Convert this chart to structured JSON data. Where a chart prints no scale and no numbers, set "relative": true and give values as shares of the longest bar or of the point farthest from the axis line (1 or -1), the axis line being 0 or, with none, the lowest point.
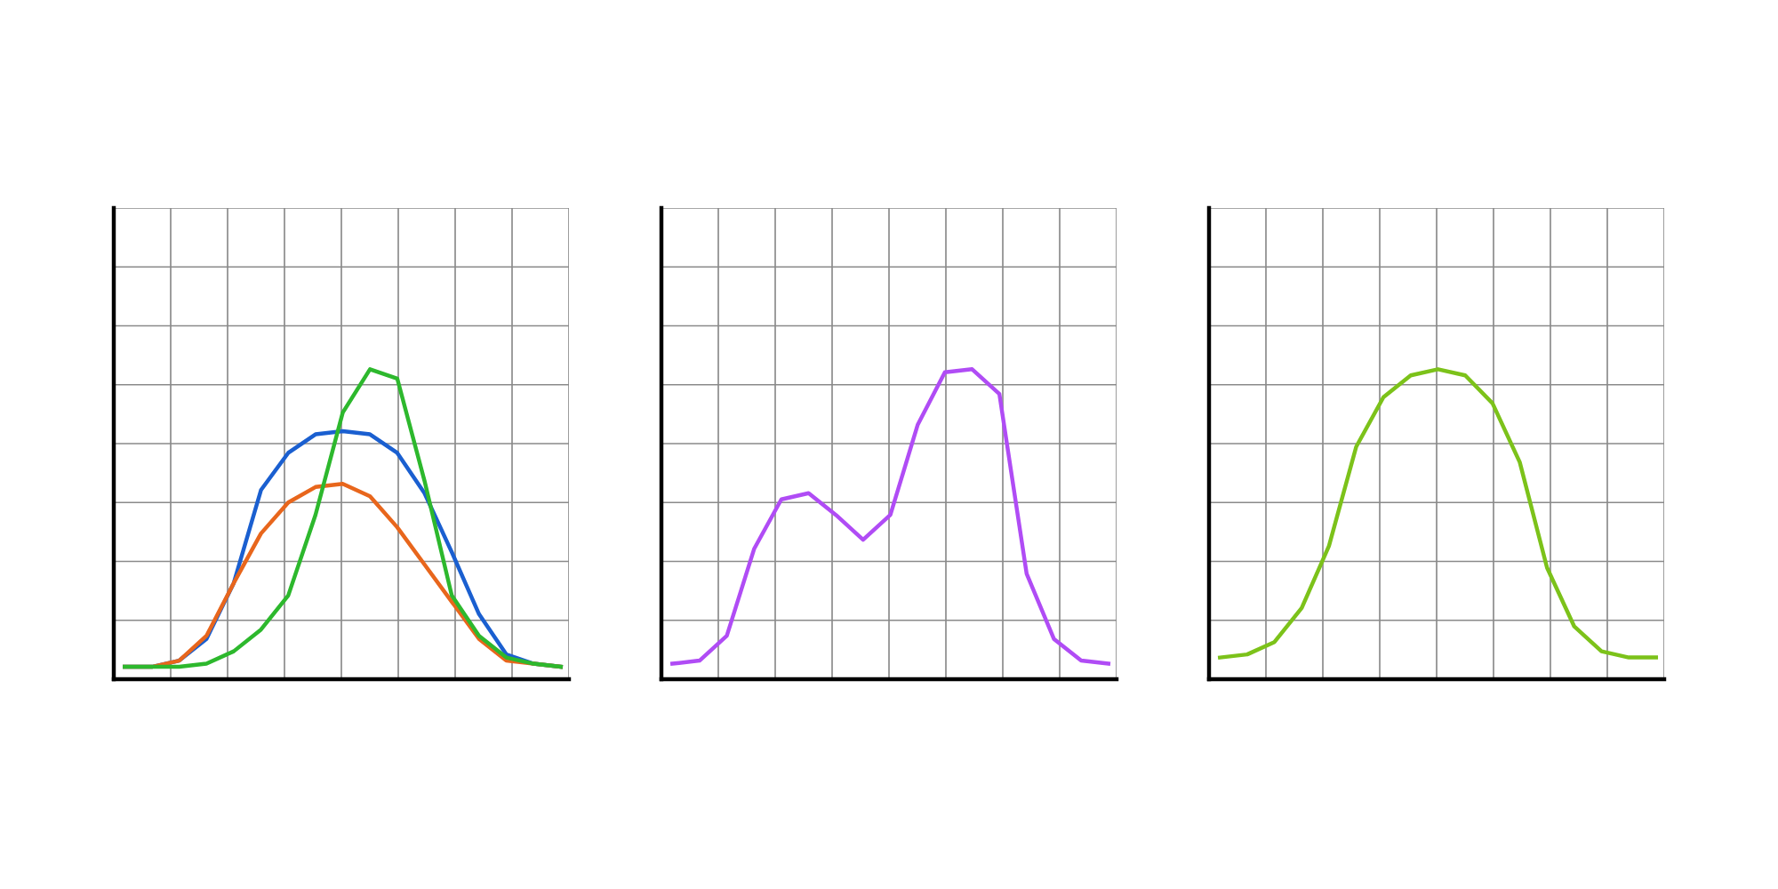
{
  "chart_data": [
    {
      "type": "line",
      "relative": true,
      "grid": true,
      "tick_labels": false,
      "marker": "none",
      "line_style": "solid",
      "categories": [
        null,
        null,
        null,
        null,
        null,
        null,
        null,
        null,
        null,
        null,
        null,
        null,
        null,
        null,
        null,
        null,
        null
      ],
      "series": [
        {
          "color": "#1a5fd0",
          "values": [
            0.04,
            0.04,
            0.06,
            0.13,
            0.31,
            0.61,
            0.73,
            0.79,
            0.8,
            0.79,
            0.73,
            0.6,
            0.41,
            0.21,
            0.08,
            0.05,
            0.04
          ]
        },
        {
          "color": "#e8661c",
          "values": [
            0.04,
            0.04,
            0.06,
            0.14,
            0.31,
            0.47,
            0.57,
            0.62,
            0.63,
            0.59,
            0.49,
            0.37,
            0.25,
            0.13,
            0.06,
            0.05,
            0.04
          ]
        },
        {
          "color": "#2db82d",
          "values": [
            0.04,
            0.04,
            0.04,
            0.05,
            0.09,
            0.16,
            0.27,
            0.53,
            0.86,
            1.0,
            0.97,
            0.64,
            0.27,
            0.14,
            0.07,
            0.05,
            0.04
          ]
        }
      ]
    },
    {
      "type": "line",
      "relative": true,
      "grid": true,
      "tick_labels": false,
      "marker": "none",
      "line_style": "solid",
      "categories": [
        null,
        null,
        null,
        null,
        null,
        null,
        null,
        null,
        null,
        null,
        null,
        null,
        null,
        null,
        null,
        null,
        null
      ],
      "series": [
        {
          "color": "#b04cf5",
          "values": [
            0.05,
            0.06,
            0.14,
            0.42,
            0.58,
            0.6,
            0.53,
            0.45,
            0.53,
            0.82,
            0.99,
            1.0,
            0.92,
            0.34,
            0.13,
            0.06,
            0.05
          ]
        }
      ]
    },
    {
      "type": "line",
      "relative": true,
      "grid": true,
      "tick_labels": false,
      "marker": "none",
      "line_style": "solid",
      "categories": [
        null,
        null,
        null,
        null,
        null,
        null,
        null,
        null,
        null,
        null,
        null,
        null,
        null,
        null,
        null,
        null,
        null
      ],
      "series": [
        {
          "color": "#7cc21a",
          "values": [
            0.07,
            0.08,
            0.12,
            0.23,
            0.43,
            0.75,
            0.91,
            0.98,
            1.0,
            0.98,
            0.89,
            0.7,
            0.36,
            0.17,
            0.09,
            0.07,
            0.07
          ]
        }
      ]
    }
  ]
}
